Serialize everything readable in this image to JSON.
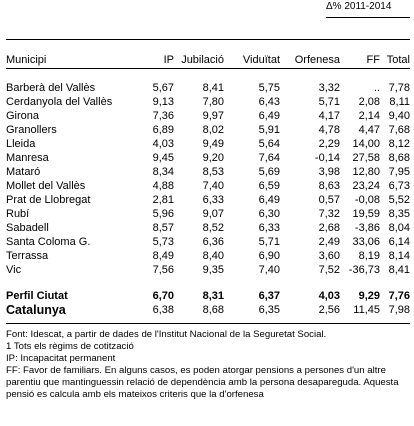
{
  "header": {
    "delta_label": "Δ% 2011-2014"
  },
  "table": {
    "columns": [
      "Municipi",
      "IP",
      "Jubilació",
      "Viduïtat",
      "Orfenesa",
      "FF",
      "Total"
    ],
    "rows": [
      [
        "Barberà del Vallès",
        "5,67",
        "8,41",
        "5,75",
        "3,32",
        "..",
        "7,78"
      ],
      [
        "Cerdanyola del Vallès",
        "9,13",
        "7,80",
        "6,43",
        "5,71",
        "2,08",
        "8,11"
      ],
      [
        "Girona",
        "7,36",
        "9,97",
        "6,49",
        "4,17",
        "2,14",
        "9,40"
      ],
      [
        "Granollers",
        "6,89",
        "8,02",
        "5,91",
        "4,78",
        "4,47",
        "7,68"
      ],
      [
        "Lleida",
        "4,03",
        "9,49",
        "5,64",
        "2,29",
        "14,00",
        "8,12"
      ],
      [
        "Manresa",
        "9,45",
        "9,20",
        "7,64",
        "-0,14",
        "27,58",
        "8,68"
      ],
      [
        "Mataró",
        "8,34",
        "8,53",
        "5,69",
        "3,98",
        "12,80",
        "7,95"
      ],
      [
        "Mollet del Vallès",
        "4,88",
        "7,40",
        "6,59",
        "8,63",
        "23,24",
        "6,73"
      ],
      [
        "Prat de Llobregat",
        "2,81",
        "6,33",
        "6,49",
        "0,57",
        "-0,08",
        "5,52"
      ],
      [
        "Rubí",
        "5,96",
        "9,07",
        "6,30",
        "7,32",
        "19,59",
        "8,35"
      ],
      [
        "Sabadell",
        "8,57",
        "8,52",
        "6,33",
        "2,68",
        "-3,86",
        "8,04"
      ],
      [
        "Santa Coloma G.",
        "5,73",
        "6,36",
        "5,71",
        "2,49",
        "33,06",
        "6,14"
      ],
      [
        "Terrassa",
        "8,49",
        "8,40",
        "6,90",
        "3,60",
        "8,19",
        "8,14"
      ],
      [
        "Vic",
        "7,56",
        "9,35",
        "7,40",
        "7,52",
        "-36,73",
        "8,41"
      ]
    ],
    "perfil": [
      "Perfil Ciutat",
      "6,70",
      "8,31",
      "6,37",
      "4,03",
      "9,29",
      "7,76"
    ],
    "catalunya": [
      "Catalunya",
      "6,38",
      "8,68",
      "6,35",
      "2,56",
      "11,45",
      "7,98"
    ]
  },
  "notes": [
    "Font: Idescat, a partir de dades de l'Institut Nacional de la Seguretat Social.",
    "1 Tots els règims de cotització",
    "IP: Incapacitat permanent",
    "FF: Favor de familiars. En alguns casos, es poden atorgar pensions a persones d'un altre parentiu que mantinguessin relació de dependència amb la persona desapareguda. Aquesta pensió es calcula amb els mateixos criteris que la d'orfenesa"
  ]
}
